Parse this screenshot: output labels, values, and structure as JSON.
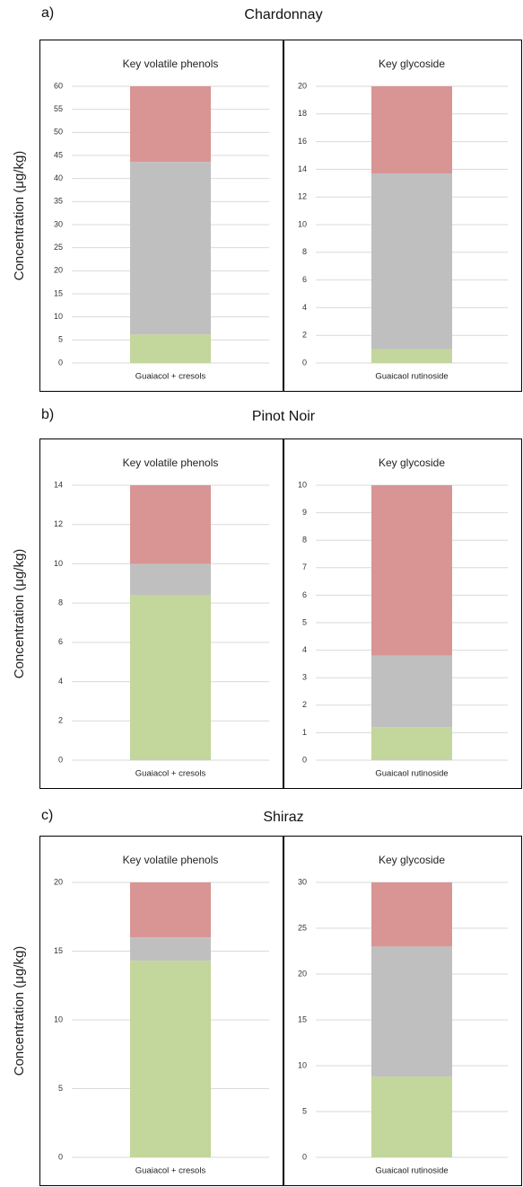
{
  "panels": [
    {
      "label": "a)",
      "title": "Chardonnay",
      "ylabel": "Concentration (μg/kg)"
    },
    {
      "label": "b)",
      "title": "Pinot Noir",
      "ylabel": "Concentration (μg/kg)"
    },
    {
      "label": "c)",
      "title": "Shiraz",
      "ylabel": "Concentration (μg/kg)"
    }
  ],
  "chart_data": [
    {
      "type": "stacked_bar",
      "title": "Key volatile phenols",
      "categories": [
        "Guaiacol + cresols"
      ],
      "series": [
        {
          "color": "#c3d69b",
          "values": [
            6.2
          ]
        },
        {
          "color": "#bfbfbf",
          "values": [
            37.4
          ]
        },
        {
          "color": "#d99594",
          "values": [
            16.4
          ]
        }
      ],
      "ylim": [
        0,
        60
      ],
      "yticks": [
        0,
        5,
        10,
        15,
        20,
        25,
        30,
        35,
        40,
        45,
        50,
        55,
        60
      ],
      "grid": true
    },
    {
      "type": "stacked_bar",
      "title": "Key glycoside",
      "categories": [
        "Guaicaol rutinoside"
      ],
      "series": [
        {
          "color": "#c3d69b",
          "values": [
            1.0
          ]
        },
        {
          "color": "#bfbfbf",
          "values": [
            12.7
          ]
        },
        {
          "color": "#d99594",
          "values": [
            6.3
          ]
        }
      ],
      "ylim": [
        0,
        20
      ],
      "yticks": [
        0,
        2,
        4,
        6,
        8,
        10,
        12,
        14,
        16,
        18,
        20
      ],
      "grid": true
    },
    {
      "type": "stacked_bar",
      "title": "Key volatile phenols",
      "categories": [
        "Guaiacol + cresols"
      ],
      "series": [
        {
          "color": "#c3d69b",
          "values": [
            8.4
          ]
        },
        {
          "color": "#bfbfbf",
          "values": [
            1.6
          ]
        },
        {
          "color": "#d99594",
          "values": [
            4.0
          ]
        }
      ],
      "ylim": [
        0,
        14
      ],
      "yticks": [
        0,
        2,
        4,
        6,
        8,
        10,
        12,
        14
      ],
      "grid": true
    },
    {
      "type": "stacked_bar",
      "title": "Key glycoside",
      "categories": [
        "Guaicaol rutinoside"
      ],
      "series": [
        {
          "color": "#c3d69b",
          "values": [
            1.2
          ]
        },
        {
          "color": "#bfbfbf",
          "values": [
            2.6
          ]
        },
        {
          "color": "#d99594",
          "values": [
            6.2
          ]
        }
      ],
      "ylim": [
        0,
        10
      ],
      "yticks": [
        0,
        1,
        2,
        3,
        4,
        5,
        6,
        7,
        8,
        9,
        10
      ],
      "grid": true
    },
    {
      "type": "stacked_bar",
      "title": "Key volatile phenols",
      "categories": [
        "Guaiacol + cresols"
      ],
      "series": [
        {
          "color": "#c3d69b",
          "values": [
            14.3
          ]
        },
        {
          "color": "#bfbfbf",
          "values": [
            1.7
          ]
        },
        {
          "color": "#d99594",
          "values": [
            4.0
          ]
        }
      ],
      "ylim": [
        0,
        20
      ],
      "yticks": [
        0,
        5,
        10,
        15,
        20
      ],
      "grid": true
    },
    {
      "type": "stacked_bar",
      "title": "Key glycoside",
      "categories": [
        "Guaicaol rutinoside"
      ],
      "series": [
        {
          "color": "#c3d69b",
          "values": [
            8.8
          ]
        },
        {
          "color": "#bfbfbf",
          "values": [
            14.2
          ]
        },
        {
          "color": "#d99594",
          "values": [
            7.0
          ]
        }
      ],
      "ylim": [
        0,
        30
      ],
      "yticks": [
        0,
        5,
        10,
        15,
        20,
        25,
        30
      ],
      "grid": true
    }
  ]
}
